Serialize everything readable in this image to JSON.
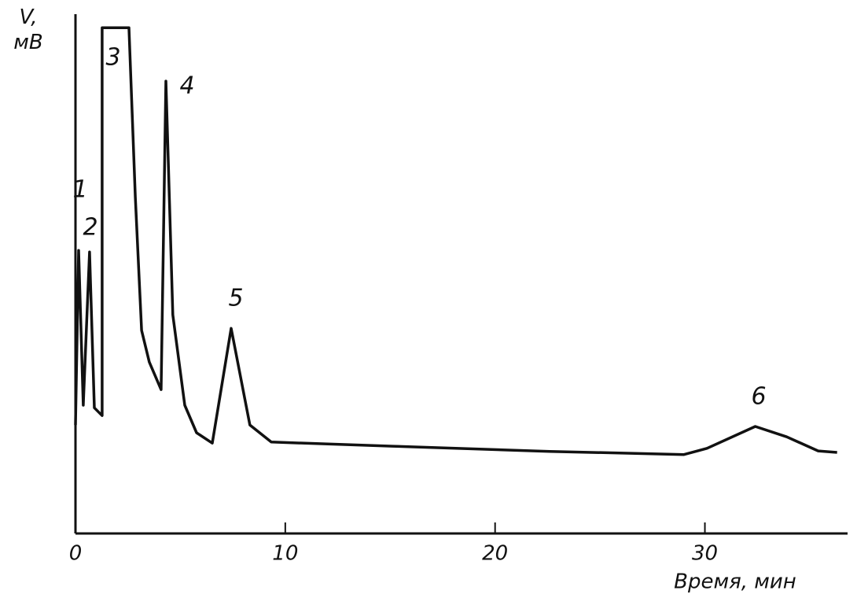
{
  "chart_data": {
    "type": "line",
    "y_label": "V, мВ",
    "x_label": "Время, мин",
    "x": [
      0,
      0.15,
      0.37,
      0.67,
      0.9,
      1.27,
      1.27,
      2.55,
      2.85,
      3.15,
      3.52,
      4.08,
      4.31,
      4.64,
      5.21,
      5.77,
      6.52,
      7.42,
      8.31,
      9.33,
      15.13,
      22.6,
      29.0,
      30.1,
      32.4,
      33.9,
      35.4,
      36.3
    ],
    "series": [
      {
        "color": "#111111",
        "values": [
          20.9,
          54.5,
          24.7,
          54.2,
          24.2,
          22.7,
          97.4,
          97.4,
          64.8,
          39.1,
          33.0,
          27.7,
          87.1,
          42.1,
          24.7,
          19.4,
          17.4,
          39.5,
          20.9,
          17.6,
          16.8,
          15.8,
          15.2,
          16.4,
          20.6,
          18.6,
          15.9,
          15.6
        ]
      }
    ],
    "annotations": [
      "1",
      "2",
      "3",
      "4",
      "5",
      "6"
    ],
    "xlim": [
      0,
      36.8
    ],
    "ylim": [
      0,
      100
    ],
    "xticks": [
      0,
      10,
      20,
      30
    ],
    "grid": false
  }
}
